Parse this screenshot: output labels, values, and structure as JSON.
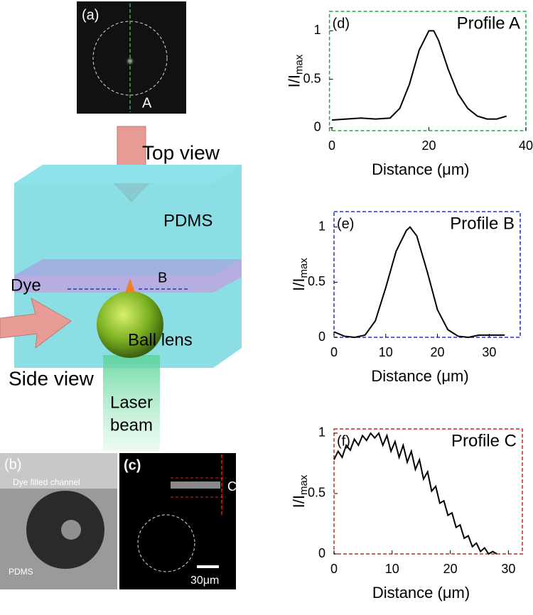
{
  "figure": {
    "a": {
      "label": "(a)",
      "marker": "A"
    },
    "top_view": "Top view",
    "pdms": "PDMS",
    "dye": "Dye",
    "b_marker": "B",
    "ball_lens": "Ball lens",
    "side_view": "Side view",
    "laser": [
      "Laser",
      "beam"
    ],
    "b": {
      "label": "(b)",
      "channel": "Dye filled channel",
      "pdms": "PDMS"
    },
    "c": {
      "label": "(c)",
      "marker": "C",
      "scale": "30μm"
    }
  },
  "chart_data": [
    {
      "type": "line",
      "panel": "(d)",
      "title": "Profile A",
      "frame_color": "#1aa84a",
      "xlabel": "Distance (μm)",
      "ylabel": "I/I",
      "ylabel_sub": "max",
      "xlim": [
        -0.5,
        40
      ],
      "ylim": [
        -0.03,
        1.2
      ],
      "xticks": [
        0,
        20,
        40
      ],
      "yticks": [
        0,
        0.5,
        1
      ],
      "x": [
        0,
        3,
        6,
        9,
        12,
        14,
        16,
        18,
        20,
        21,
        22,
        24,
        26,
        28,
        30,
        32,
        34,
        36
      ],
      "series": [
        {
          "color": "#000000",
          "values": [
            0.08,
            0.09,
            0.1,
            0.09,
            0.1,
            0.2,
            0.45,
            0.8,
            1.0,
            1.0,
            0.9,
            0.6,
            0.35,
            0.2,
            0.12,
            0.09,
            0.09,
            0.12
          ]
        }
      ]
    },
    {
      "type": "line",
      "panel": "(e)",
      "title": "Profile B",
      "frame_color": "#2233cc",
      "xlabel": "Distance (μm)",
      "ylabel": "I/I",
      "ylabel_sub": "max",
      "xlim": [
        0,
        36
      ],
      "ylim": [
        0,
        1.14
      ],
      "xticks": [
        0,
        10,
        20,
        30
      ],
      "yticks": [
        0,
        0.5,
        1
      ],
      "x": [
        0,
        2,
        4,
        6,
        8,
        10,
        12,
        14,
        14.7,
        16,
        18,
        20,
        22,
        24,
        26,
        28,
        30,
        33
      ],
      "series": [
        {
          "color": "#000000",
          "values": [
            0.05,
            0.01,
            0,
            0.02,
            0.15,
            0.45,
            0.78,
            0.97,
            1.0,
            0.92,
            0.6,
            0.25,
            0.07,
            0.01,
            0,
            0.02,
            0.02,
            0.02
          ]
        }
      ]
    },
    {
      "type": "line",
      "panel": "(f)",
      "title": "Profile C",
      "frame_color": "#dd2222",
      "xlabel": "Distance (μm)",
      "ylabel": "I/I",
      "ylabel_sub": "max",
      "xlim": [
        0,
        32.4
      ],
      "ylim": [
        0,
        1.035
      ],
      "xticks": [
        0,
        10,
        20,
        30
      ],
      "yticks": [
        0,
        0.5,
        1
      ],
      "x": [
        0,
        0.7,
        1.4,
        2.1,
        2.8,
        3.5,
        4.2,
        4.9,
        5.6,
        6.3,
        7,
        7.7,
        8.4,
        9.1,
        9.8,
        10.5,
        11.2,
        11.9,
        12.6,
        13.3,
        14,
        14.7,
        15.4,
        16.1,
        16.8,
        17.5,
        18.2,
        18.9,
        19.6,
        20.3,
        21,
        21.7,
        22.4,
        23.1,
        23.8,
        24.5,
        25.2,
        25.9,
        26.6,
        27.3,
        28
      ],
      "series": [
        {
          "color": "#000000",
          "values": [
            0.78,
            0.85,
            0.8,
            0.9,
            0.86,
            0.95,
            0.9,
            0.98,
            0.94,
            1.0,
            0.96,
            1.0,
            0.9,
            0.98,
            0.85,
            0.93,
            0.8,
            0.9,
            0.76,
            0.85,
            0.7,
            0.78,
            0.62,
            0.68,
            0.52,
            0.56,
            0.42,
            0.44,
            0.32,
            0.34,
            0.22,
            0.24,
            0.13,
            0.15,
            0.06,
            0.09,
            0.02,
            0.05,
            0,
            0.02,
            0
          ]
        }
      ]
    }
  ]
}
